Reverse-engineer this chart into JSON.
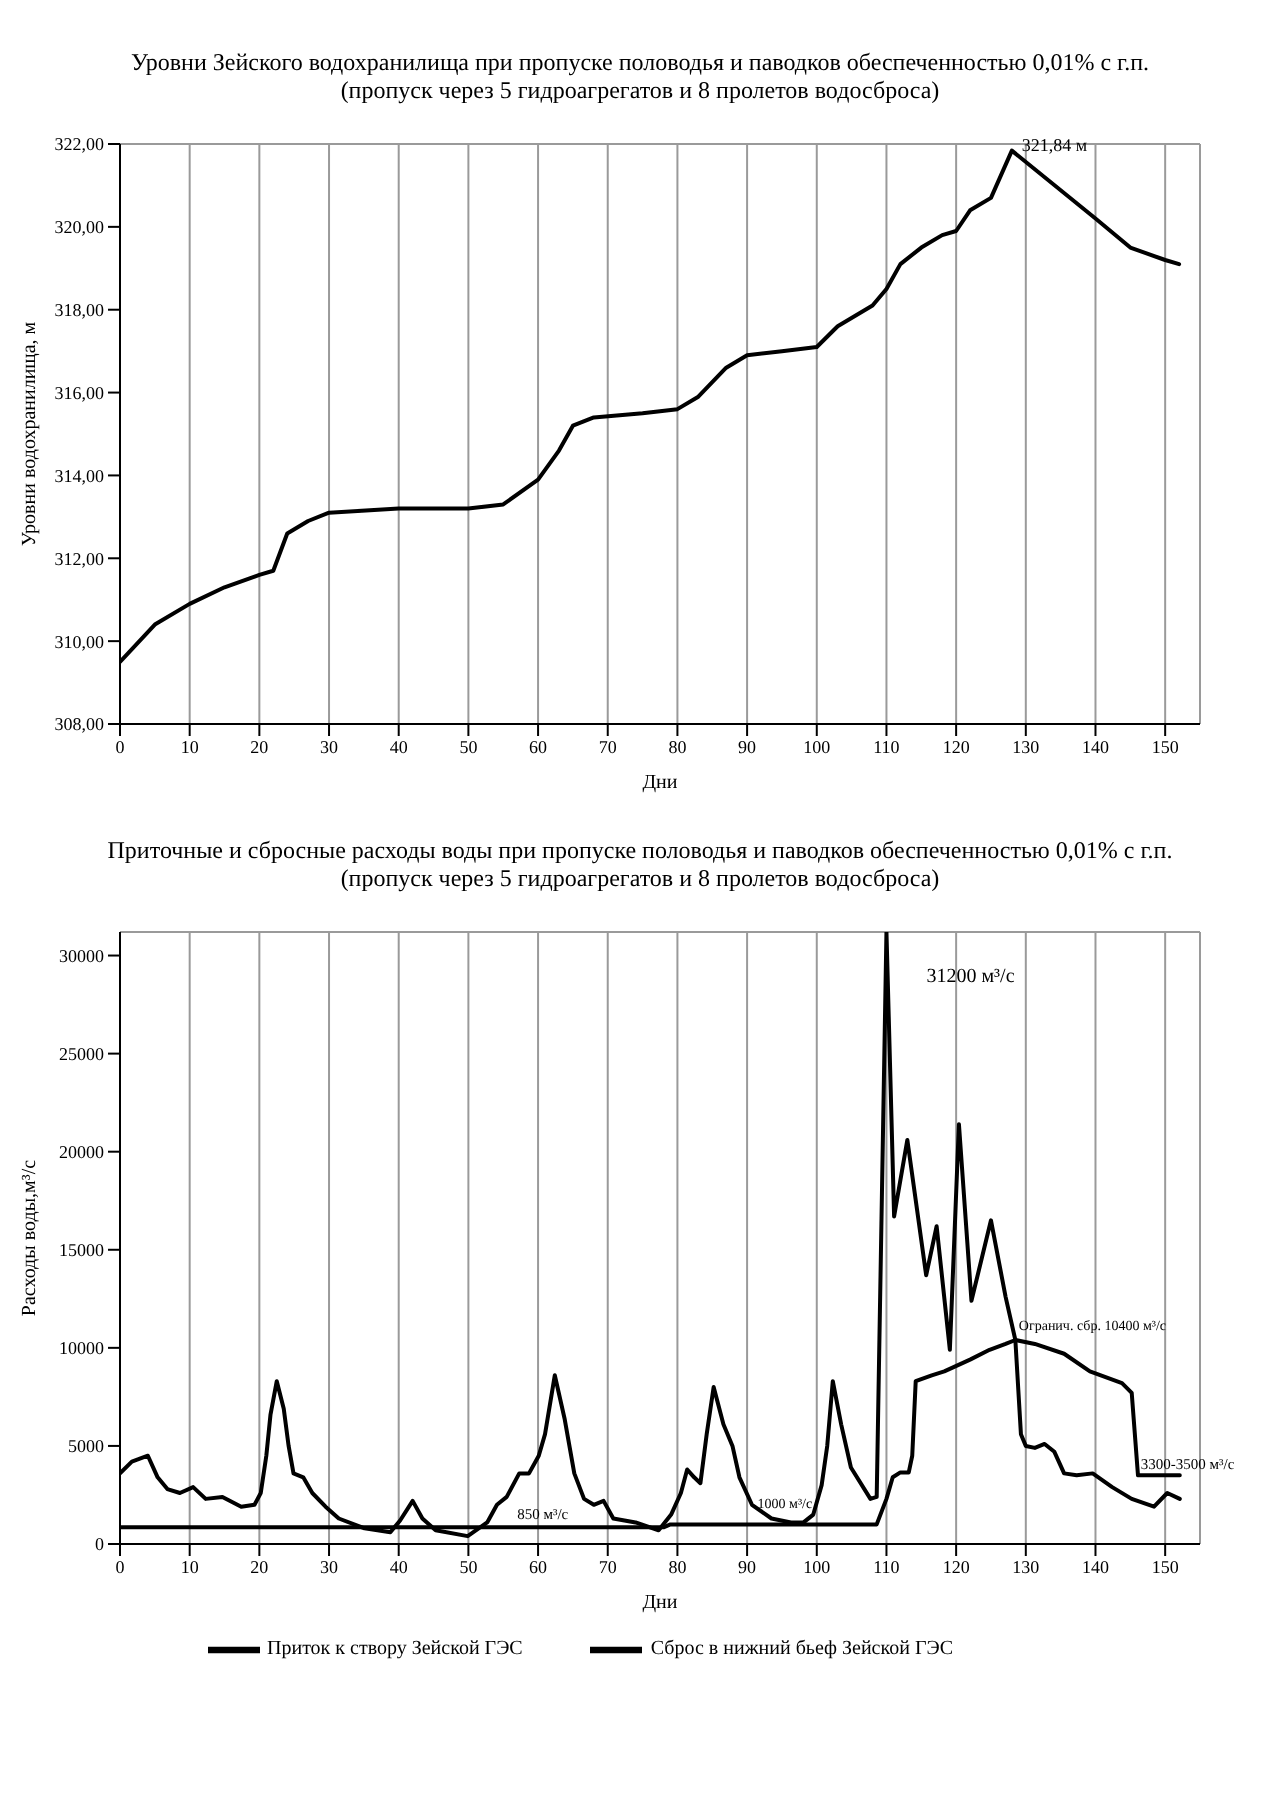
{
  "chart_data": [
    {
      "type": "line",
      "title": "Уровни Зейского водохранилища при пропуске половодья и паводков обеспеченностью 0,01% с г.п.",
      "subtitle": "(пропуск через 5 гидроагрегатов и 8 пролетов водосброса)",
      "xlabel": "Дни",
      "ylabel": "Уровни водохранилища, м",
      "series": [
        {
          "color": "#000000",
          "x": [
            0,
            5,
            10,
            15,
            20,
            22,
            24,
            27,
            30,
            40,
            50,
            55,
            60,
            63,
            65,
            68,
            75,
            80,
            83,
            87,
            90,
            95,
            100,
            103,
            108,
            110,
            112,
            115,
            118,
            120,
            122,
            125,
            128,
            140,
            145,
            150,
            152
          ],
          "values": [
            309.5,
            310.4,
            310.9,
            311.3,
            311.6,
            311.7,
            312.6,
            312.9,
            313.1,
            313.2,
            313.2,
            313.3,
            313.9,
            314.6,
            315.2,
            315.4,
            315.5,
            315.6,
            315.9,
            316.6,
            316.9,
            317.0,
            317.1,
            317.6,
            318.1,
            318.5,
            319.1,
            319.5,
            319.8,
            319.9,
            320.4,
            320.7,
            321.84,
            320.2,
            319.5,
            319.2,
            319.1
          ]
        }
      ],
      "xlim": [
        0,
        155
      ],
      "xticks": [
        0,
        10,
        20,
        30,
        40,
        50,
        60,
        70,
        80,
        90,
        100,
        110,
        120,
        130,
        140,
        150
      ],
      "ylim": [
        308,
        322
      ],
      "yticks": [
        {
          "value": 308,
          "label": "308,00"
        },
        {
          "value": 310,
          "label": "310,00"
        },
        {
          "value": 312,
          "label": "312,00"
        },
        {
          "value": 314,
          "label": "314,00"
        },
        {
          "value": 316,
          "label": "316,00"
        },
        {
          "value": 318,
          "label": "318,00"
        },
        {
          "value": 320,
          "label": "320,00"
        },
        {
          "value": 322,
          "label": "322,00"
        }
      ],
      "grid": true,
      "annotations": [
        {
          "text": "321,84 м",
          "x": 128,
          "y": 321.84
        }
      ]
    },
    {
      "type": "line",
      "title": "Приточные и сбросные расходы воды при пропуске половодья и паводков обеспеченностью 0,01% с г.п.",
      "subtitle": "(пропуск через 5 гидроагрегатов и 8 пролетов водосброса)",
      "xlabel": "Дни",
      "ylabel": "Расходы воды,м³/с",
      "series": [
        {
          "name": "Приток к створу Зейской ГЭС",
          "color": "#000000",
          "x": [
            0,
            1.7,
            4,
            5.4,
            6.8,
            8.6,
            10.5,
            12.3,
            14.7,
            17.4,
            19.3,
            20.2,
            21,
            21.6,
            22.5,
            23.5,
            24.2,
            24.9,
            26.3,
            27.6,
            29.5,
            31.4,
            35.1,
            38.8,
            40.2,
            42,
            43.4,
            45.3,
            49.9,
            52.7,
            54.1,
            55.5,
            57.3,
            58.7,
            60.1,
            61,
            62.4,
            63.8,
            65.2,
            66.6,
            68,
            69.4,
            70.8,
            74,
            77.3,
            79.1,
            80.5,
            81.4,
            82.4,
            83.3,
            84.2,
            85.2,
            86.6,
            87.9,
            88.9,
            90.7,
            93.5,
            96.3,
            98.1,
            99.5,
            100.7,
            101.5,
            102.3,
            103.5,
            104.9,
            107.7,
            108.6,
            110,
            111.1,
            113,
            115.7,
            117.2,
            119.1,
            120.4,
            122.2,
            125,
            127.1,
            128.5,
            129.3,
            130,
            131.3,
            132.7,
            134.1,
            135.5,
            137.3,
            139.6,
            142.4,
            145.2,
            148.4,
            150.3,
            152.1
          ],
          "values": [
            3600,
            4200,
            4500,
            3400,
            2800,
            2600,
            2900,
            2300,
            2400,
            1900,
            2000,
            2600,
            4500,
            6600,
            8300,
            6900,
            5000,
            3600,
            3400,
            2600,
            1900,
            1300,
            800,
            600,
            1200,
            2200,
            1300,
            700,
            400,
            1100,
            2000,
            2400,
            3600,
            3600,
            4500,
            5600,
            8600,
            6400,
            3600,
            2300,
            2000,
            2200,
            1300,
            1100,
            700,
            1500,
            2600,
            3800,
            3400,
            3100,
            5600,
            8000,
            6100,
            5000,
            3400,
            2000,
            1300,
            1100,
            1100,
            1500,
            3000,
            5000,
            8300,
            6100,
            3900,
            2300,
            2400,
            31200,
            16700,
            20600,
            13700,
            16200,
            9900,
            21400,
            12400,
            16500,
            12600,
            10400,
            5600,
            5000,
            4900,
            5100,
            4700,
            3600,
            3500,
            3600,
            2900,
            2300,
            1900,
            2600,
            2300
          ]
        },
        {
          "name": "Сброс в нижний бьеф Зейской ГЭС",
          "color": "#000000",
          "x": [
            0,
            78,
            79,
            108.6,
            110,
            110.9,
            112,
            113.2,
            113.7,
            114.2,
            116.5,
            118.3,
            122,
            124.8,
            127.1,
            128.5,
            131.3,
            135.5,
            139.2,
            143.8,
            145.2,
            146.1,
            152.1
          ],
          "values": [
            850,
            850,
            1000,
            1000,
            2300,
            3400,
            3650,
            3650,
            4500,
            8300,
            8600,
            8800,
            9400,
            9900,
            10200,
            10400,
            10200,
            9700,
            8800,
            8200,
            7700,
            3500,
            3500
          ]
        }
      ],
      "xlim": [
        0,
        155
      ],
      "xticks": [
        0,
        10,
        20,
        30,
        40,
        50,
        60,
        70,
        80,
        90,
        100,
        110,
        120,
        130,
        140,
        150
      ],
      "ylim": [
        0,
        31200
      ],
      "yticks": [
        0,
        5000,
        10000,
        15000,
        20000,
        25000,
        30000
      ],
      "grid": true,
      "legend": "bottom",
      "annotations": [
        {
          "text": "31200 м³/с",
          "x": 110,
          "y": 31200
        },
        {
          "text": "850 м³/с",
          "x": 57,
          "y": 850
        },
        {
          "text": "1000 м³/с",
          "x": 91.5,
          "y": 1000
        },
        {
          "text": "Огранич. сбр. 10400 м³/с",
          "x": 129,
          "y": 10400
        },
        {
          "text": "3300-3500 м³/с",
          "x": 146.5,
          "y": 3500
        }
      ]
    }
  ]
}
